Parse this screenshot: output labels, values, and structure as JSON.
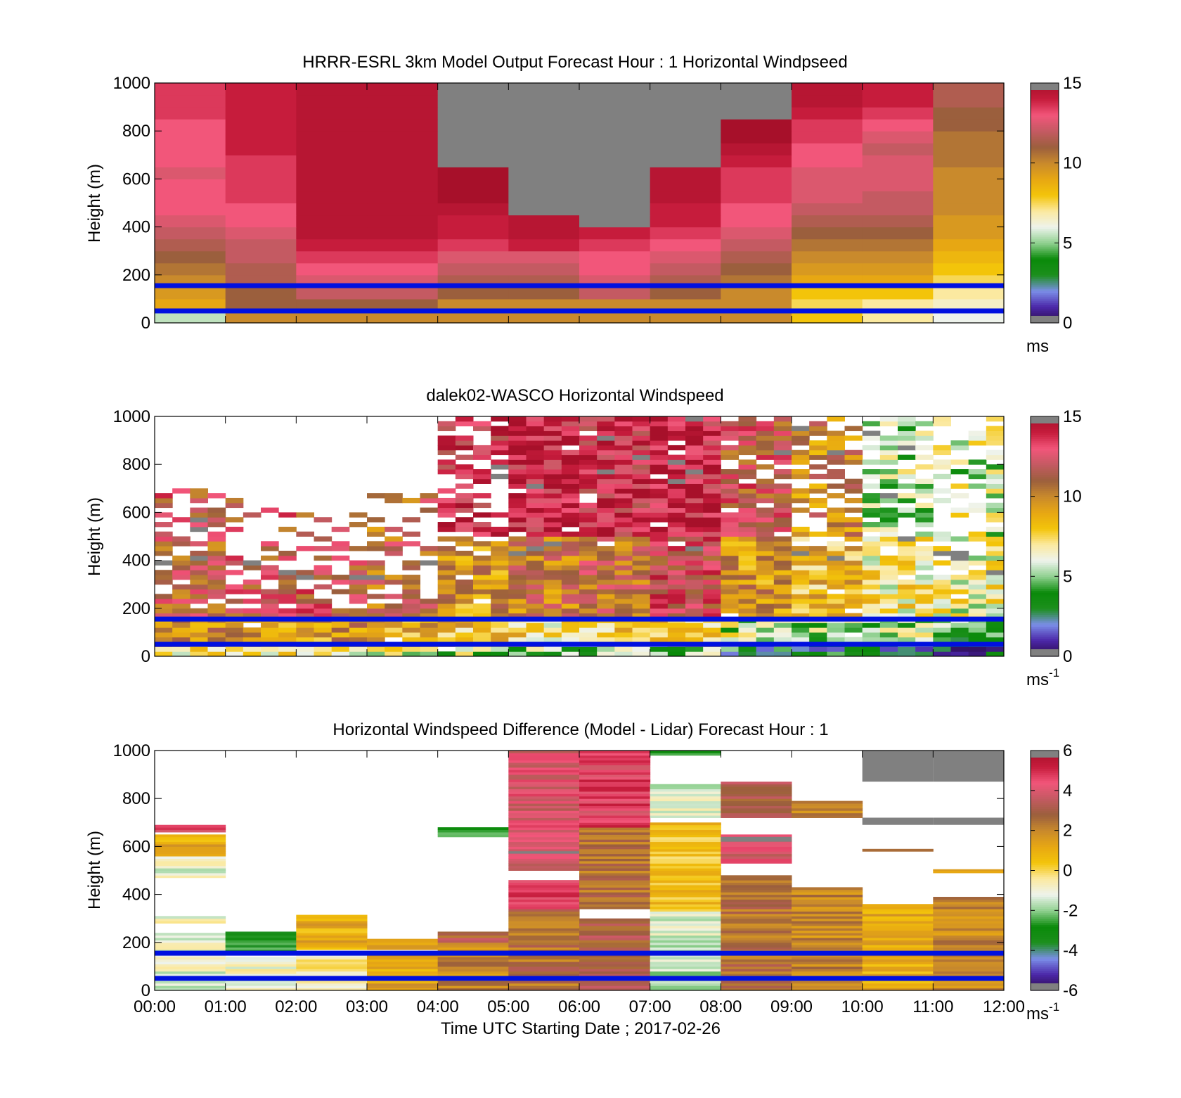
{
  "figure": {
    "xlabel": "Time UTC  Starting Date ; 2017-02-26",
    "height_band_lines_m": [
      50,
      155
    ]
  },
  "colormaps": {
    "speed": [
      "#2a0a4a",
      "#4b27a8",
      "#7b8ee8",
      "#1c8f1c",
      "#0a8a0a",
      "#8fd08f",
      "#eef3ec",
      "#fbe9a0",
      "#f3c40a",
      "#e7a713",
      "#c98a2c",
      "#9b5f3d",
      "#c45a62",
      "#f2567a",
      "#c61c3c",
      "#a7102a"
    ],
    "difference": [
      "#2a0a4a",
      "#4b27a8",
      "#7b8ee8",
      "#1c8f1c",
      "#0a8a0a",
      "#8fd08f",
      "#eef3ec",
      "#fbe9a0",
      "#f3c40a",
      "#e7a713",
      "#c98a2c",
      "#9b5f3d",
      "#c45a62",
      "#f2567a",
      "#c61c3c",
      "#a7102a"
    ],
    "missing": "#808080",
    "band_line": "#0010e0"
  },
  "chart_data": [
    {
      "type": "heatmap",
      "title": "HRRR-ESRL 3km Model Output   Forecast Hour : 1 Horizontal Windpseed",
      "ylabel": "Height (m)",
      "xlabel": "",
      "ylim": [
        0,
        1000
      ],
      "yticks": [
        "0",
        "200",
        "400",
        "600",
        "800",
        "1000"
      ],
      "xlim_hours": [
        0,
        12
      ],
      "xtick_labels": [],
      "colorbar": {
        "range": [
          0,
          15
        ],
        "ticks": [
          "0",
          "5",
          "10",
          "15"
        ],
        "unit": "ms",
        "unit_sup": "",
        "cmap": "speed"
      },
      "heights_m": [
        25,
        75,
        125,
        175,
        225,
        275,
        325,
        375,
        425,
        475,
        525,
        575,
        625,
        675,
        725,
        775,
        825,
        875,
        925,
        975
      ],
      "columns_hours_start": [
        0,
        1,
        2,
        3,
        4,
        5,
        6,
        7,
        8,
        9,
        10,
        11
      ],
      "values_ms": [
        [
          5.5,
          10,
          10,
          10,
          10,
          10,
          10,
          10,
          10,
          8,
          7,
          6
        ],
        [
          9,
          11,
          11,
          11,
          10,
          10,
          10,
          10,
          10,
          7.5,
          7,
          6.5
        ],
        [
          9.5,
          11,
          12,
          12,
          11,
          11,
          12,
          11,
          10,
          8,
          8,
          7
        ],
        [
          10,
          11.5,
          12.5,
          12.5,
          11.5,
          11.5,
          12.5,
          11.5,
          10.5,
          9,
          9,
          7.5
        ],
        [
          10.5,
          11.5,
          13,
          13,
          12,
          12,
          13,
          12,
          11,
          9.5,
          9.5,
          8
        ],
        [
          11,
          12,
          13.5,
          13.5,
          12.5,
          12.5,
          13,
          12.5,
          11.5,
          10,
          10,
          8.5
        ],
        [
          11.5,
          12,
          14,
          14,
          13.5,
          14,
          13.5,
          13,
          12,
          10.5,
          10.5,
          9
        ],
        [
          12,
          12.5,
          14.5,
          14.5,
          14,
          14.5,
          14,
          13.5,
          12.5,
          11,
          11,
          9.5
        ],
        [
          12.5,
          13,
          14.5,
          14.5,
          14,
          14.5,
          null,
          14,
          13,
          11.5,
          11.5,
          9.5
        ],
        [
          13,
          13,
          14.5,
          14.5,
          14.5,
          null,
          null,
          14,
          13,
          12,
          12,
          10
        ],
        [
          13,
          13.5,
          14.5,
          14.5,
          15,
          null,
          null,
          14.5,
          13.5,
          12.5,
          12,
          10
        ],
        [
          13,
          13.5,
          14.5,
          14.5,
          15,
          null,
          null,
          14.5,
          13.5,
          12.5,
          12.5,
          10
        ],
        [
          12.5,
          13.5,
          14.5,
          14.5,
          15,
          null,
          null,
          14.5,
          13.5,
          12.5,
          12.5,
          10
        ],
        [
          13,
          13.5,
          14.5,
          14.5,
          null,
          null,
          null,
          null,
          14,
          13,
          12.5,
          10.5
        ],
        [
          13,
          14,
          14.5,
          14.5,
          null,
          null,
          null,
          null,
          14.5,
          13,
          12,
          10.5
        ],
        [
          13,
          14,
          14.5,
          14.5,
          null,
          null,
          null,
          null,
          15,
          13.5,
          12.5,
          10.5
        ],
        [
          13,
          14,
          14.5,
          14.5,
          null,
          null,
          null,
          null,
          15,
          13.5,
          13,
          11
        ],
        [
          13.5,
          14,
          14.5,
          14.5,
          null,
          null,
          null,
          null,
          null,
          14,
          13.5,
          11
        ],
        [
          13.5,
          14,
          14.5,
          14.5,
          null,
          null,
          null,
          null,
          null,
          14.5,
          14,
          11.5
        ],
        [
          13.5,
          14,
          14.5,
          14.5,
          null,
          null,
          null,
          null,
          null,
          14.5,
          14,
          11.5
        ]
      ]
    },
    {
      "type": "heatmap",
      "title": "dalek02-WASCO  Horizontal Windspeed",
      "ylabel": "Height (m)",
      "xlabel": "",
      "ylim": [
        0,
        1000
      ],
      "yticks": [
        "0",
        "200",
        "400",
        "600",
        "800",
        "1000"
      ],
      "xlim_hours": [
        0,
        12
      ],
      "xtick_labels": [],
      "colorbar": {
        "range": [
          0,
          15
        ],
        "ticks": [
          "0",
          "5",
          "10",
          "15"
        ],
        "unit": "ms",
        "unit_sup": "-1",
        "cmap": "speed"
      },
      "profiles_per_hour": 4,
      "bin_height_m": 20,
      "hourly_regime": [
        {
          "hour": 0,
          "low": 9.5,
          "mid": 11.5,
          "high": 12,
          "coverage_top_m": 700,
          "fill": 0.55
        },
        {
          "hour": 1,
          "low": 9.5,
          "mid": 12,
          "high": 12,
          "coverage_top_m": 650,
          "fill": 0.35
        },
        {
          "hour": 2,
          "low": 9.5,
          "mid": 12,
          "high": 12,
          "coverage_top_m": 600,
          "fill": 0.3
        },
        {
          "hour": 3,
          "low": 9,
          "mid": 11,
          "high": 11,
          "coverage_top_m": 700,
          "fill": 0.35
        },
        {
          "hour": 4,
          "low": 8,
          "mid": 9.5,
          "high": 13.5,
          "coverage_top_m": 1000,
          "fill": 0.6
        },
        {
          "hour": 5,
          "low": 7.5,
          "mid": 10.5,
          "high": 14,
          "coverage_top_m": 1000,
          "fill": 0.95
        },
        {
          "hour": 6,
          "low": 7.5,
          "mid": 11,
          "high": 13.5,
          "coverage_top_m": 1000,
          "fill": 0.95
        },
        {
          "hour": 7,
          "low": 8,
          "mid": 12.5,
          "high": 14,
          "coverage_top_m": 1000,
          "fill": 0.95
        },
        {
          "hour": 8,
          "low": 6,
          "mid": 9.5,
          "high": 12,
          "coverage_top_m": 1000,
          "fill": 0.85
        },
        {
          "hour": 9,
          "low": 5.5,
          "mid": 8.5,
          "high": 10,
          "coverage_top_m": 1000,
          "fill": 0.7
        },
        {
          "hour": 10,
          "low": 5.5,
          "mid": 7,
          "high": 5.5,
          "coverage_top_m": 1000,
          "fill": 0.65
        },
        {
          "hour": 11,
          "low": 4.5,
          "mid": 6.5,
          "high": 6,
          "coverage_top_m": 1000,
          "fill": 0.6
        }
      ]
    },
    {
      "type": "heatmap",
      "title": "Horizontal Windspeed Difference (Model - Lidar) Forecast Hour : 1",
      "ylabel": "Height (m)",
      "xlabel": "Time UTC  Starting Date ; 2017-02-26",
      "ylim": [
        0,
        1000
      ],
      "yticks": [
        "0",
        "200",
        "400",
        "600",
        "800",
        "1000"
      ],
      "xlim_hours": [
        0,
        12
      ],
      "xtick_labels": [
        "00:00",
        "01:00",
        "02:00",
        "03:00",
        "04:00",
        "05:00",
        "06:00",
        "07:00",
        "08:00",
        "09:00",
        "10:00",
        "11:00",
        "12:00"
      ],
      "colorbar": {
        "range": [
          -6,
          6
        ],
        "ticks": [
          "-6",
          "-4",
          "-2",
          "0",
          "2",
          "4",
          "6"
        ],
        "unit": "ms",
        "unit_sup": "-1",
        "cmap": "difference"
      },
      "bin_height_m": 10,
      "segments": [
        {
          "hour": 0,
          "from_m": 0,
          "to_m": 240,
          "value": -1.2
        },
        {
          "hour": 0,
          "from_m": 280,
          "to_m": 310,
          "value": -1
        },
        {
          "hour": 0,
          "from_m": 470,
          "to_m": 560,
          "value": -1
        },
        {
          "hour": 0,
          "from_m": 560,
          "to_m": 650,
          "value": 1
        },
        {
          "hour": 0,
          "from_m": 660,
          "to_m": 690,
          "value": 4.5
        },
        {
          "hour": 1,
          "from_m": 0,
          "to_m": 140,
          "value": -1
        },
        {
          "hour": 1,
          "from_m": 160,
          "to_m": 245,
          "value": -3
        },
        {
          "hour": 2,
          "from_m": 0,
          "to_m": 150,
          "value": -0.5
        },
        {
          "hour": 2,
          "from_m": 170,
          "to_m": 315,
          "value": 1
        },
        {
          "hour": 3,
          "from_m": 0,
          "to_m": 150,
          "value": 1.3
        },
        {
          "hour": 3,
          "from_m": 170,
          "to_m": 215,
          "value": 1.5
        },
        {
          "hour": 4,
          "from_m": 0,
          "to_m": 200,
          "value": 2
        },
        {
          "hour": 4,
          "from_m": 200,
          "to_m": 245,
          "value": 3
        },
        {
          "hour": 4,
          "from_m": 640,
          "to_m": 680,
          "value": -2.5
        },
        {
          "hour": 5,
          "from_m": 0,
          "to_m": 340,
          "value": 2.5
        },
        {
          "hour": 5,
          "from_m": 340,
          "to_m": 460,
          "value": 4.5
        },
        {
          "hour": 5,
          "from_m": 500,
          "to_m": 1000,
          "value": 4
        },
        {
          "hour": 6,
          "from_m": 0,
          "to_m": 300,
          "value": 3
        },
        {
          "hour": 6,
          "from_m": 340,
          "to_m": 680,
          "value": 2.5
        },
        {
          "hour": 6,
          "from_m": 680,
          "to_m": 1000,
          "value": 4.5
        },
        {
          "hour": 7,
          "from_m": 0,
          "to_m": 330,
          "value": -1.5
        },
        {
          "hour": 7,
          "from_m": 330,
          "to_m": 700,
          "value": 0.5
        },
        {
          "hour": 7,
          "from_m": 720,
          "to_m": 860,
          "value": -1.2
        },
        {
          "hour": 7,
          "from_m": 980,
          "to_m": 1000,
          "value": -3
        },
        {
          "hour": 8,
          "from_m": 0,
          "to_m": 480,
          "value": 2.5
        },
        {
          "hour": 8,
          "from_m": 530,
          "to_m": 650,
          "value": 4
        },
        {
          "hour": 8,
          "from_m": 720,
          "to_m": 870,
          "value": 3
        },
        {
          "hour": 9,
          "from_m": 0,
          "to_m": 430,
          "value": 2
        },
        {
          "hour": 9,
          "from_m": 720,
          "to_m": 790,
          "value": 1.8
        },
        {
          "hour": 10,
          "from_m": 0,
          "to_m": 360,
          "value": 1
        },
        {
          "hour": 10,
          "from_m": 580,
          "to_m": 590,
          "value": 2.5
        },
        {
          "hour": 11,
          "from_m": 0,
          "to_m": 390,
          "value": 2
        },
        {
          "hour": 11,
          "from_m": 490,
          "to_m": 505,
          "value": 1
        }
      ],
      "missing_segments": [
        {
          "hour": 5,
          "from_m": 570,
          "to_m": 580
        },
        {
          "hour": 8,
          "from_m": 620,
          "to_m": 640
        },
        {
          "hour": 10,
          "from_m": 690,
          "to_m": 720
        },
        {
          "hour": 10,
          "from_m": 870,
          "to_m": 1000
        },
        {
          "hour": 11,
          "from_m": 690,
          "to_m": 720
        },
        {
          "hour": 11,
          "from_m": 870,
          "to_m": 1000
        }
      ]
    }
  ]
}
